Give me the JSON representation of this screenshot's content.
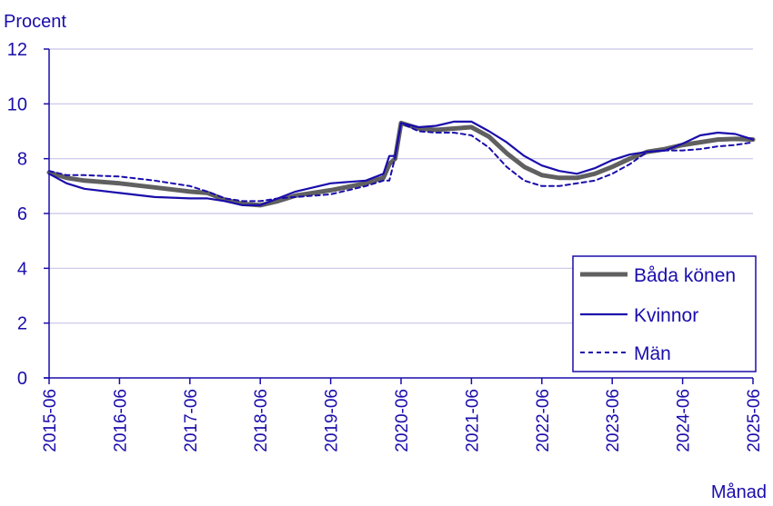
{
  "chart_data": {
    "type": "line",
    "ylabel": "Procent",
    "xlabel": "Månad",
    "ylim": [
      0,
      12
    ],
    "yticks": [
      0,
      2,
      4,
      6,
      8,
      10,
      12
    ],
    "xticks": [
      "2015-06",
      "2016-06",
      "2017-06",
      "2018-06",
      "2019-06",
      "2020-06",
      "2021-06",
      "2022-06",
      "2023-06",
      "2024-06",
      "2025-06"
    ],
    "grid": true,
    "legend_position": "bottom-right",
    "colors": {
      "axis": "#1a0dab",
      "grid": "#c8c4e8",
      "both": "#606060",
      "women": "#1a0dab",
      "men": "#1a0dab"
    },
    "series": [
      {
        "name": "Båda könen",
        "style": "solid-thick",
        "x": [
          "2015-06",
          "2015-09",
          "2015-12",
          "2016-06",
          "2016-12",
          "2017-06",
          "2017-09",
          "2017-12",
          "2018-03",
          "2018-06",
          "2018-09",
          "2018-12",
          "2019-06",
          "2019-12",
          "2020-03",
          "2020-04",
          "2020-05",
          "2020-06",
          "2020-09",
          "2020-12",
          "2021-03",
          "2021-06",
          "2021-09",
          "2021-12",
          "2022-03",
          "2022-06",
          "2022-09",
          "2022-12",
          "2023-03",
          "2023-06",
          "2023-09",
          "2023-12",
          "2024-03",
          "2024-06",
          "2024-09",
          "2024-12",
          "2025-03",
          "2025-06"
        ],
        "values": [
          7.5,
          7.3,
          7.2,
          7.1,
          6.95,
          6.8,
          6.75,
          6.5,
          6.35,
          6.3,
          6.45,
          6.65,
          6.85,
          7.1,
          7.3,
          7.8,
          8.0,
          9.3,
          9.1,
          9.05,
          9.1,
          9.15,
          8.8,
          8.2,
          7.7,
          7.4,
          7.3,
          7.3,
          7.45,
          7.7,
          8.0,
          8.25,
          8.35,
          8.5,
          8.6,
          8.7,
          8.72,
          8.7
        ]
      },
      {
        "name": "Kvinnor",
        "style": "solid",
        "x": [
          "2015-06",
          "2015-09",
          "2015-12",
          "2016-06",
          "2016-12",
          "2017-06",
          "2017-09",
          "2017-12",
          "2018-03",
          "2018-06",
          "2018-09",
          "2018-12",
          "2019-06",
          "2019-12",
          "2020-03",
          "2020-04",
          "2020-05",
          "2020-06",
          "2020-09",
          "2020-12",
          "2021-03",
          "2021-06",
          "2021-09",
          "2021-12",
          "2022-03",
          "2022-06",
          "2022-09",
          "2022-12",
          "2023-03",
          "2023-06",
          "2023-09",
          "2023-12",
          "2024-03",
          "2024-06",
          "2024-09",
          "2024-12",
          "2025-03",
          "2025-06"
        ],
        "values": [
          7.45,
          7.1,
          6.9,
          6.75,
          6.6,
          6.55,
          6.55,
          6.45,
          6.3,
          6.3,
          6.55,
          6.8,
          7.1,
          7.2,
          7.45,
          8.1,
          8.1,
          9.3,
          9.15,
          9.2,
          9.35,
          9.35,
          9.0,
          8.6,
          8.1,
          7.75,
          7.55,
          7.45,
          7.65,
          7.95,
          8.15,
          8.25,
          8.3,
          8.55,
          8.85,
          8.95,
          8.9,
          8.7
        ]
      },
      {
        "name": "Män",
        "style": "dashed",
        "x": [
          "2015-06",
          "2015-09",
          "2015-12",
          "2016-06",
          "2016-12",
          "2017-06",
          "2017-09",
          "2017-12",
          "2018-03",
          "2018-06",
          "2018-09",
          "2018-12",
          "2019-06",
          "2019-12",
          "2020-03",
          "2020-04",
          "2020-05",
          "2020-06",
          "2020-09",
          "2020-12",
          "2021-03",
          "2021-06",
          "2021-09",
          "2021-12",
          "2022-03",
          "2022-06",
          "2022-09",
          "2022-12",
          "2023-03",
          "2023-06",
          "2023-09",
          "2023-12",
          "2024-03",
          "2024-06",
          "2024-09",
          "2024-12",
          "2025-03",
          "2025-06"
        ],
        "values": [
          7.55,
          7.4,
          7.4,
          7.35,
          7.2,
          7.0,
          6.8,
          6.55,
          6.45,
          6.45,
          6.55,
          6.6,
          6.7,
          7.0,
          7.2,
          7.2,
          8.05,
          9.3,
          9.0,
          8.95,
          8.95,
          8.85,
          8.4,
          7.7,
          7.2,
          7.0,
          7.0,
          7.1,
          7.2,
          7.45,
          7.8,
          8.25,
          8.3,
          8.3,
          8.35,
          8.45,
          8.5,
          8.6
        ]
      }
    ]
  }
}
